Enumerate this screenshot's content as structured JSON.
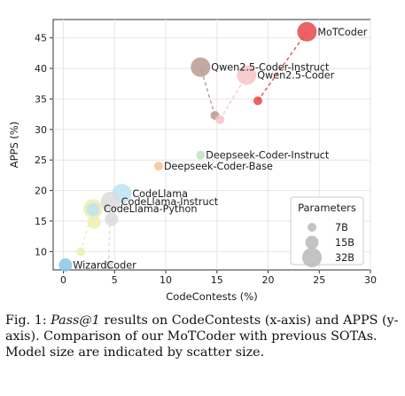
{
  "chart_data": {
    "type": "scatter",
    "xlabel": "CodeContests (%)",
    "ylabel": "APPS (%)",
    "xlim": [
      -1,
      30
    ],
    "ylim": [
      7,
      48
    ],
    "xticks": [
      0,
      5,
      10,
      15,
      20,
      25,
      30
    ],
    "yticks": [
      10,
      15,
      20,
      25,
      30,
      35,
      40,
      45
    ],
    "grid": true,
    "points": [
      {
        "label": "MoTCoder",
        "x": 23.8,
        "y": 46.0,
        "size": "32B",
        "color": "#e8484b"
      },
      {
        "label": "",
        "x": 19.0,
        "y": 34.7,
        "size": "7B",
        "color": "#e8484b"
      },
      {
        "label": "Qwen2.5-Coder-Instruct",
        "x": 13.4,
        "y": 40.2,
        "size": "32B",
        "color": "#b89a92"
      },
      {
        "label": "",
        "x": 14.8,
        "y": 32.3,
        "size": "7B",
        "color": "#b89a92"
      },
      {
        "label": "Qwen2.5-Coder",
        "x": 17.9,
        "y": 38.9,
        "size": "32B",
        "color": "#f7c4c8"
      },
      {
        "label": "",
        "x": 15.3,
        "y": 31.6,
        "size": "7B",
        "color": "#f7c4c8"
      },
      {
        "label": "Deepseek-Coder-Instruct",
        "x": 13.4,
        "y": 25.8,
        "size": "7B",
        "color": "#bfe3bf"
      },
      {
        "label": "Deepseek-Coder-Base",
        "x": 9.3,
        "y": 24.0,
        "size": "7B",
        "color": "#fbbf8c"
      },
      {
        "label": "CodeLlama",
        "x": 5.7,
        "y": 19.5,
        "size": "32B",
        "color": "#bce4f2"
      },
      {
        "label": "",
        "x": 2.9,
        "y": 16.9,
        "size": "15B",
        "color": "#bce4f2"
      },
      {
        "label": "CodeLlama-Instruct",
        "x": 4.6,
        "y": 18.2,
        "size": "32B",
        "color": "#dcdcdc"
      },
      {
        "label": "",
        "x": 4.7,
        "y": 15.3,
        "size": "15B",
        "color": "#dcdcdc"
      },
      {
        "label": "",
        "x": 4.4,
        "y": 7.8,
        "size": "7B",
        "color": "#dcdcdc"
      },
      {
        "label": "CodeLlama-Python",
        "x": 2.9,
        "y": 17.0,
        "size": "32B",
        "color": "#eeeeb0"
      },
      {
        "label": "",
        "x": 3.0,
        "y": 14.8,
        "size": "15B",
        "color": "#eeeeb0"
      },
      {
        "label": "",
        "x": 1.7,
        "y": 10.0,
        "size": "7B",
        "color": "#eeeeb0"
      },
      {
        "label": "WizardCoder",
        "x": 0.2,
        "y": 7.8,
        "size": "15B",
        "color": "#8ac8e8"
      }
    ],
    "connections": [
      {
        "from": [
          19.0,
          34.7
        ],
        "to": [
          23.8,
          46.0
        ],
        "color": "#e8484b"
      },
      {
        "from": [
          14.8,
          32.3
        ],
        "to": [
          13.4,
          40.2
        ],
        "color": "#b89a92"
      },
      {
        "from": [
          15.3,
          31.6
        ],
        "to": [
          17.9,
          38.9
        ],
        "color": "#f7c4c8"
      },
      {
        "from": [
          2.9,
          16.9
        ],
        "to": [
          5.7,
          19.5
        ],
        "color": "#bce4f2"
      },
      {
        "from": [
          1.7,
          10.0
        ],
        "to": [
          2.9,
          17.0
        ],
        "color": "#eeeeb0"
      },
      {
        "from": [
          4.4,
          7.8
        ],
        "to": [
          4.6,
          18.2
        ],
        "color": "#dcdcdc"
      }
    ],
    "legend": {
      "title": "Parameters",
      "placement": "bottom-right",
      "entries": [
        {
          "label": "7B",
          "size": "7B"
        },
        {
          "label": "15B",
          "size": "15B"
        },
        {
          "label": "32B",
          "size": "32B"
        }
      ]
    }
  },
  "caption": {
    "prefix": "Fig. 1: ",
    "emph": "Pass@1",
    "text": " results on CodeContests (x-axis) and APPS (y-axis). Comparison of our MoTCoder with previous SOTAs. Model size are indicated by scatter size."
  }
}
